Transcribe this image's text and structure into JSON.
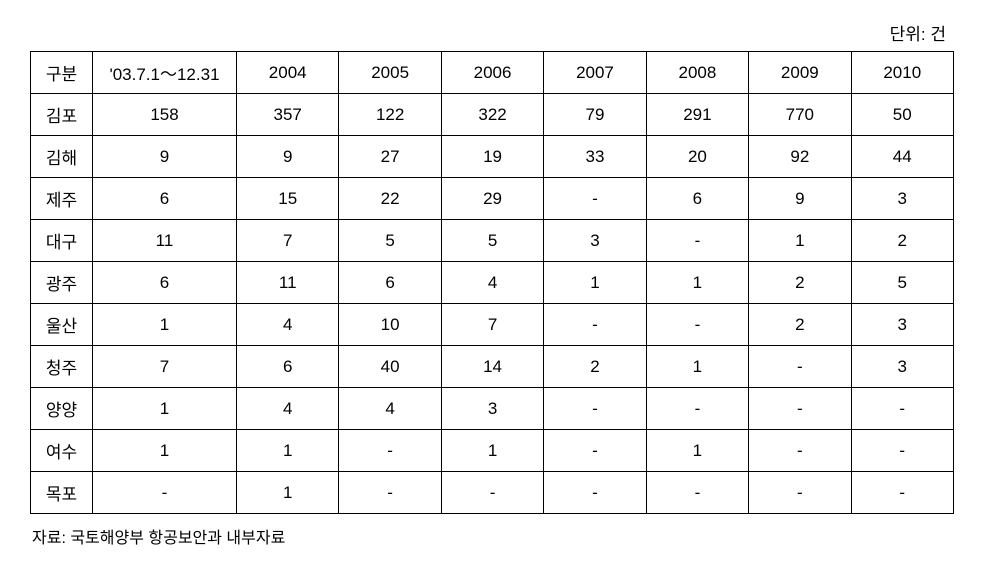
{
  "unit_label": "단위: 건",
  "source_label": "자료: 국토해양부 항공보안과 내부자료",
  "table": {
    "columns": [
      "구분",
      "'03.7.1～12.31",
      "2004",
      "2005",
      "2006",
      "2007",
      "2008",
      "2009",
      "2010"
    ],
    "rows": [
      [
        "김포",
        "158",
        "357",
        "122",
        "322",
        "79",
        "291",
        "770",
        "50"
      ],
      [
        "김해",
        "9",
        "9",
        "27",
        "19",
        "33",
        "20",
        "92",
        "44"
      ],
      [
        "제주",
        "6",
        "15",
        "22",
        "29",
        "-",
        "6",
        "9",
        "3"
      ],
      [
        "대구",
        "11",
        "7",
        "5",
        "5",
        "3",
        "-",
        "1",
        "2"
      ],
      [
        "광주",
        "6",
        "11",
        "6",
        "4",
        "1",
        "1",
        "2",
        "5"
      ],
      [
        "울산",
        "1",
        "4",
        "10",
        "7",
        "-",
        "-",
        "2",
        "3"
      ],
      [
        "청주",
        "7",
        "6",
        "40",
        "14",
        "2",
        "1",
        "-",
        "3"
      ],
      [
        "양양",
        "1",
        "4",
        "4",
        "3",
        "-",
        "-",
        "-",
        "-"
      ],
      [
        "여수",
        "1",
        "1",
        "-",
        "1",
        "-",
        "1",
        "-",
        "-"
      ],
      [
        "목포",
        "-",
        "1",
        "-",
        "-",
        "-",
        "-",
        "-",
        "-"
      ]
    ]
  },
  "styling": {
    "font_family": "Malgun Gothic",
    "cell_font_size": 17,
    "border_color": "#000000",
    "background_color": "#ffffff",
    "col_label_width": 62,
    "col_first_width": 144,
    "cell_padding": 8
  }
}
